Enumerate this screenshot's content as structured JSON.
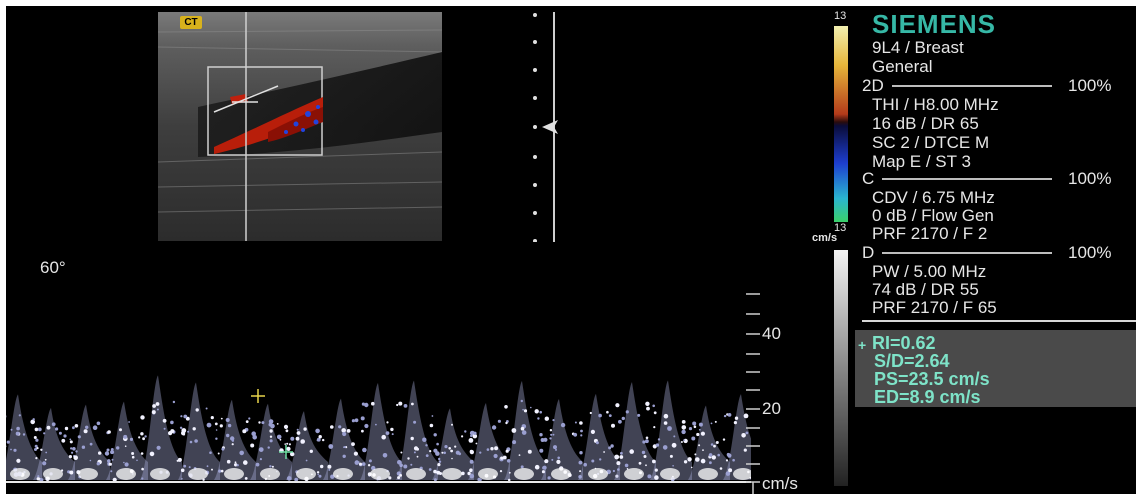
{
  "overlay": {
    "brand": "SIEMENS",
    "transducer": "9L4 / Breast",
    "preset": "General",
    "badge": "CT",
    "angle": "60°",
    "scale_top": "13",
    "scale_bottom": "13",
    "scale_unit": "cm/s"
  },
  "sections": {
    "2d": {
      "label": "2D",
      "percent": "100%",
      "lines": [
        "THI / H8.00 MHz",
        "16 dB / DR 65",
        "SC 2 / DTCE M",
        "Map E / ST 3"
      ]
    },
    "c": {
      "label": "C",
      "percent": "100%",
      "lines": [
        "CDV / 6.75 MHz",
        "0 dB / Flow Gen",
        "PRF 2170 / F 2"
      ]
    },
    "d": {
      "label": "D",
      "percent": "100%",
      "lines": [
        "PW / 5.00 MHz",
        "74 dB / DR 55",
        "PRF 2170 / F 65"
      ]
    }
  },
  "measurements": {
    "ri": "RI=0.62",
    "sd": "S/D=2.64",
    "ps": "PS=23.5 cm/s",
    "ed": "ED=8.9 cm/s"
  },
  "velocity_axis": {
    "unit": "cm/s",
    "ticks": [
      {
        "value": 40,
        "label": "40"
      },
      {
        "value": 20,
        "label": "20"
      }
    ]
  },
  "colors": {
    "brand": "#36b8a6",
    "measure_text": "#7ee3c8",
    "caliper_ps": "#e8d44a",
    "caliper_ed": "#6fe0a5"
  }
}
